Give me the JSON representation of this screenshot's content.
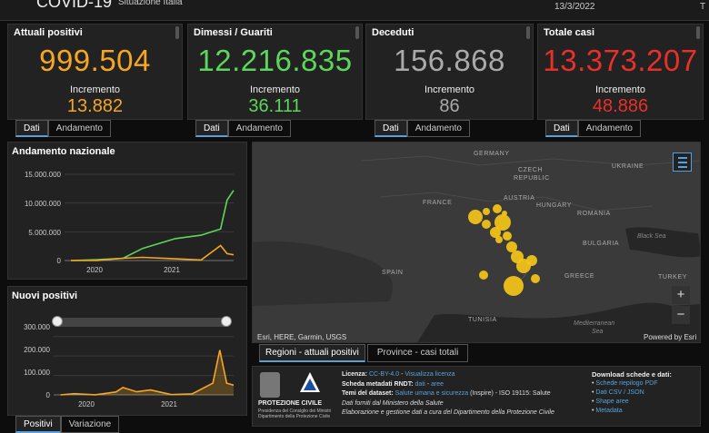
{
  "header": {
    "title": "COVID-19",
    "subtitle": "Situazione Italia",
    "date": "13/3/2022",
    "right_cut": "T"
  },
  "cards": [
    {
      "title": "Attuali positivi",
      "value": "999.504",
      "incr_label": "Incremento",
      "incr": "13.882",
      "color": "#f5a623"
    },
    {
      "title": "Dimessi / Guariti",
      "value": "12.216.835",
      "incr_label": "Incremento",
      "incr": "36.111",
      "color": "#5cd65c"
    },
    {
      "title": "Deceduti",
      "value": "156.868",
      "incr_label": "Incremento",
      "incr": "86",
      "color": "#aaaaaa"
    },
    {
      "title": "Totale casi",
      "value": "13.373.207",
      "incr_label": "Incremento",
      "incr": "48.886",
      "color": "#e8302a"
    }
  ],
  "card_tabs": {
    "dati": "Dati",
    "andamento": "Andamento"
  },
  "andamento_chart": {
    "title": "Andamento nazionale",
    "ytick_labels": [
      "15.000.000",
      "10.000.000",
      "5.000.000",
      "0"
    ],
    "xtick_labels": [
      "2020",
      "2021"
    ]
  },
  "nuovi_chart": {
    "title": "Nuovi positivi",
    "ytick_labels": [
      "300.000",
      "200.000",
      "100.000",
      "0"
    ],
    "xtick_labels": [
      "2020",
      "2021"
    ]
  },
  "bottom_tabs": {
    "positivi": "Positivi",
    "variazione": "Variazione"
  },
  "chart_data": [
    {
      "type": "line",
      "title": "Andamento nazionale",
      "ylim": [
        0,
        15000000
      ],
      "x": [
        "2020-02",
        "2020-06",
        "2020-10",
        "2021-01",
        "2021-06",
        "2021-10",
        "2022-01",
        "2022-02",
        "2022-03"
      ],
      "series": [
        {
          "color": "#5cd65c",
          "values": [
            0,
            150000,
            400000,
            2100000,
            3800000,
            4400000,
            5500000,
            10500000,
            12200000
          ]
        },
        {
          "color": "#f5a623",
          "values": [
            0,
            20000,
            400000,
            550000,
            300000,
            100000,
            2600000,
            1200000,
            1000000
          ]
        }
      ]
    },
    {
      "type": "area",
      "title": "Nuovi positivi",
      "ylim": [
        0,
        350000
      ],
      "x": [
        "2020-02",
        "2020-04",
        "2020-07",
        "2020-10",
        "2020-11",
        "2021-01",
        "2021-03",
        "2021-06",
        "2021-09",
        "2021-12",
        "2022-01",
        "2022-02",
        "2022-03"
      ],
      "series": [
        {
          "color": "#f5a623",
          "values": [
            0,
            6000,
            300,
            15000,
            38000,
            16000,
            25000,
            1500,
            5000,
            60000,
            230000,
            60000,
            50000
          ]
        }
      ]
    }
  ],
  "map": {
    "countries": [
      "GERMANY",
      "CZECH",
      "REPUBLIC",
      "AUSTRIA",
      "FRANCE",
      "HUNGARY",
      "ROMANIA",
      "BULGARIA",
      "SPAIN",
      "GREECE",
      "TURKEY",
      "TUNISIA",
      "UKRAINE"
    ],
    "seas": [
      "Black Sea",
      "Mediterranean",
      "Sea"
    ],
    "attribution": "Esri, HERE, Garmin, USGS",
    "powered": "Powered by Esri",
    "zoom_in": "+",
    "zoom_out": "−",
    "tabs": {
      "regioni": "Regioni - attuali positivi",
      "province": "Province - casi totali"
    }
  },
  "info": {
    "logo_org": "PROTEZIONE CIVILE",
    "logo_sub1": "Presidenza del Consiglio dei Ministri",
    "logo_sub2": "Dipartimento della Protezione Civile",
    "licenza_lbl": "Licenza:",
    "licenza_link": "CC-BY-4.0",
    "licenza_sep": " - ",
    "licenza_vis": "Visualizza licenza",
    "scheda_lbl": "Scheda metadati RNDT:",
    "scheda_dati": "dati",
    "scheda_sep": " - ",
    "scheda_aree": "aree",
    "temi_lbl": "Temi del dataset:",
    "temi_link": "Salute umana e sicurezza",
    "temi_rest": " (Inspire) - ISO 19115: Salute",
    "line4": "Dati forniti dal Ministero della Salute",
    "line5": "Elaborazione e gestione dati a cura del Dipartimento della Protezione Civile",
    "download_title": "Download schede e dati:",
    "downloads": [
      "Schede riepilogo PDF",
      "Dati CSV / JSON",
      "Shape aree",
      "Metadata"
    ]
  }
}
